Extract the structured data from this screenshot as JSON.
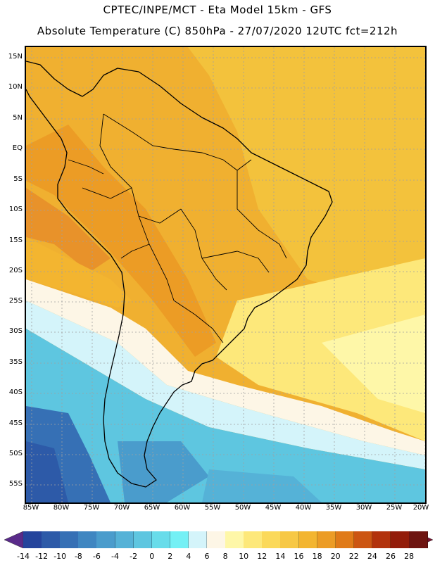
{
  "header": {
    "line1": "CPTEC/INPE/MCT -   Eta Model 15km - GFS",
    "line2": "Absolute Temperature (C) 850hPa - 27/07/2020 12UTC fct=212h"
  },
  "map": {
    "latitude_labels": [
      "15N",
      "10N",
      "5N",
      "EQ",
      "5S",
      "10S",
      "15S",
      "20S",
      "25S",
      "30S",
      "35S",
      "40S",
      "45S",
      "50S",
      "55S"
    ],
    "longitude_labels": [
      "85W",
      "80W",
      "75W",
      "70W",
      "65W",
      "60W",
      "55W",
      "50W",
      "45W",
      "40W",
      "35W",
      "30W",
      "25W",
      "20W"
    ]
  },
  "colorbar": {
    "labels": [
      "-14",
      "-12",
      "-10",
      "-8",
      "-6",
      "-4",
      "-2",
      "0",
      "2",
      "4",
      "6",
      "8",
      "10",
      "12",
      "14",
      "16",
      "18",
      "20",
      "22",
      "24",
      "26",
      "28"
    ],
    "low_end_color": "#5a2b8a",
    "high_end_color": "#7a1030",
    "colors": [
      "#25449c",
      "#2d5aa8",
      "#3670b5",
      "#3f86c1",
      "#4a9ccc",
      "#55b2d7",
      "#5ec6e0",
      "#68dcea",
      "#74f0f5",
      "#d4f4fa",
      "#fdf6e6",
      "#fef7a8",
      "#fde87a",
      "#fbd95a",
      "#f7c845",
      "#f3b530",
      "#ec9c25",
      "#e07a18",
      "#cc5512",
      "#b2320c",
      "#931c0a",
      "#6e1410"
    ]
  }
}
